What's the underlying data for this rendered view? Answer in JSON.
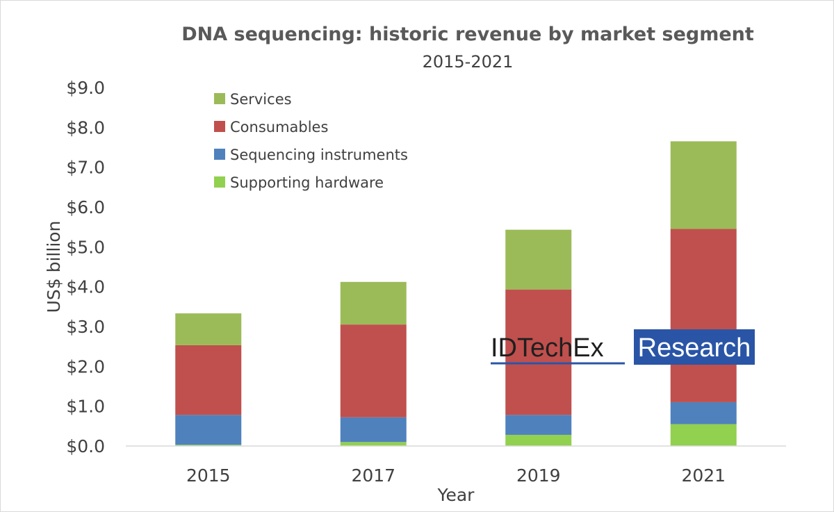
{
  "chart_data": {
    "type": "bar",
    "stacked": true,
    "title": "DNA sequencing: historic revenue by market segment",
    "subtitle": "2015-2021",
    "xlabel": "Year",
    "ylabel": "US$ billion",
    "categories": [
      "2015",
      "2017",
      "2019",
      "2021"
    ],
    "ylim": [
      0,
      9
    ],
    "yticks": [
      0,
      1,
      2,
      3,
      4,
      5,
      6,
      7,
      8,
      9
    ],
    "ytick_labels": [
      "$0.0",
      "$1.0",
      "$2.0",
      "$3.0",
      "$4.0",
      "$5.0",
      "$6.0",
      "$7.0",
      "$8.0",
      "$9.0"
    ],
    "grid": false,
    "legend_position": "top-left",
    "series": [
      {
        "name": "Supporting hardware",
        "color": "#92d050",
        "values": [
          0.03,
          0.1,
          0.28,
          0.55
        ]
      },
      {
        "name": "Sequencing instruments",
        "color": "#4f81bd",
        "values": [
          0.75,
          0.62,
          0.5,
          0.55
        ]
      },
      {
        "name": "Consumables",
        "color": "#c0504d",
        "values": [
          1.75,
          2.33,
          3.15,
          4.35
        ]
      },
      {
        "name": "Services",
        "color": "#9bbb59",
        "values": [
          0.8,
          1.07,
          1.5,
          2.2
        ]
      }
    ],
    "legend_order": [
      "Services",
      "Consumables",
      "Sequencing instruments",
      "Supporting hardware"
    ]
  },
  "watermark": {
    "brand": "IDTechEx",
    "tagline": "Research",
    "brand_color": "#1f1f1f",
    "accent_color": "#2a55a6"
  }
}
